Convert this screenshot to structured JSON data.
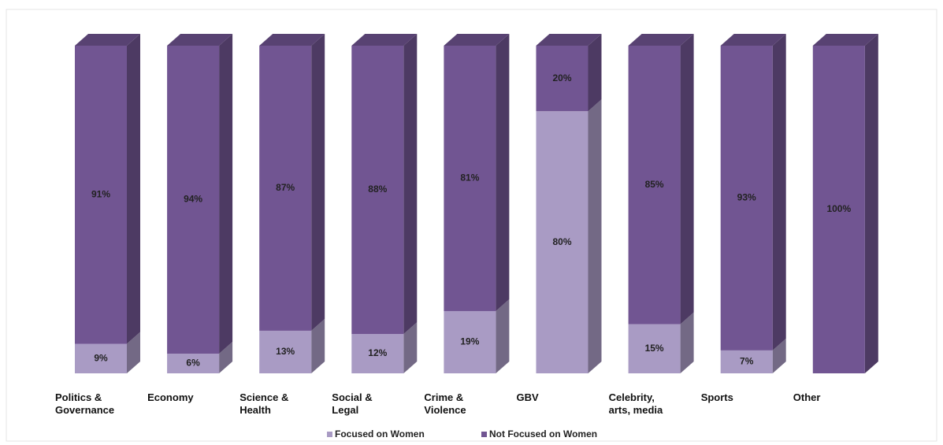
{
  "chart_data": {
    "type": "stacked_bar_3d",
    "categories": [
      "Politics & Governance",
      "Economy",
      "Science & Health",
      "Social & Legal",
      "Crime & Violence",
      "GBV",
      "Celebrity, arts, media",
      "Sports",
      "Other"
    ],
    "series": [
      {
        "name": "Focused on Women",
        "color": "#a99bc4",
        "values": [
          9,
          6,
          13,
          12,
          19,
          80,
          15,
          7,
          0
        ],
        "value_labels": [
          "9%",
          "6%",
          "13%",
          "12%",
          "19%",
          "80%",
          "15%",
          "7%",
          null
        ]
      },
      {
        "name": "Not Focused on Women",
        "color": "#715592",
        "values": [
          91,
          94,
          87,
          88,
          81,
          20,
          85,
          93,
          100
        ],
        "value_labels": [
          "91%",
          "94%",
          "87%",
          "88%",
          "81%",
          "20%",
          "85%",
          "93%",
          "100%"
        ]
      }
    ],
    "ylim": [
      0,
      100
    ]
  }
}
